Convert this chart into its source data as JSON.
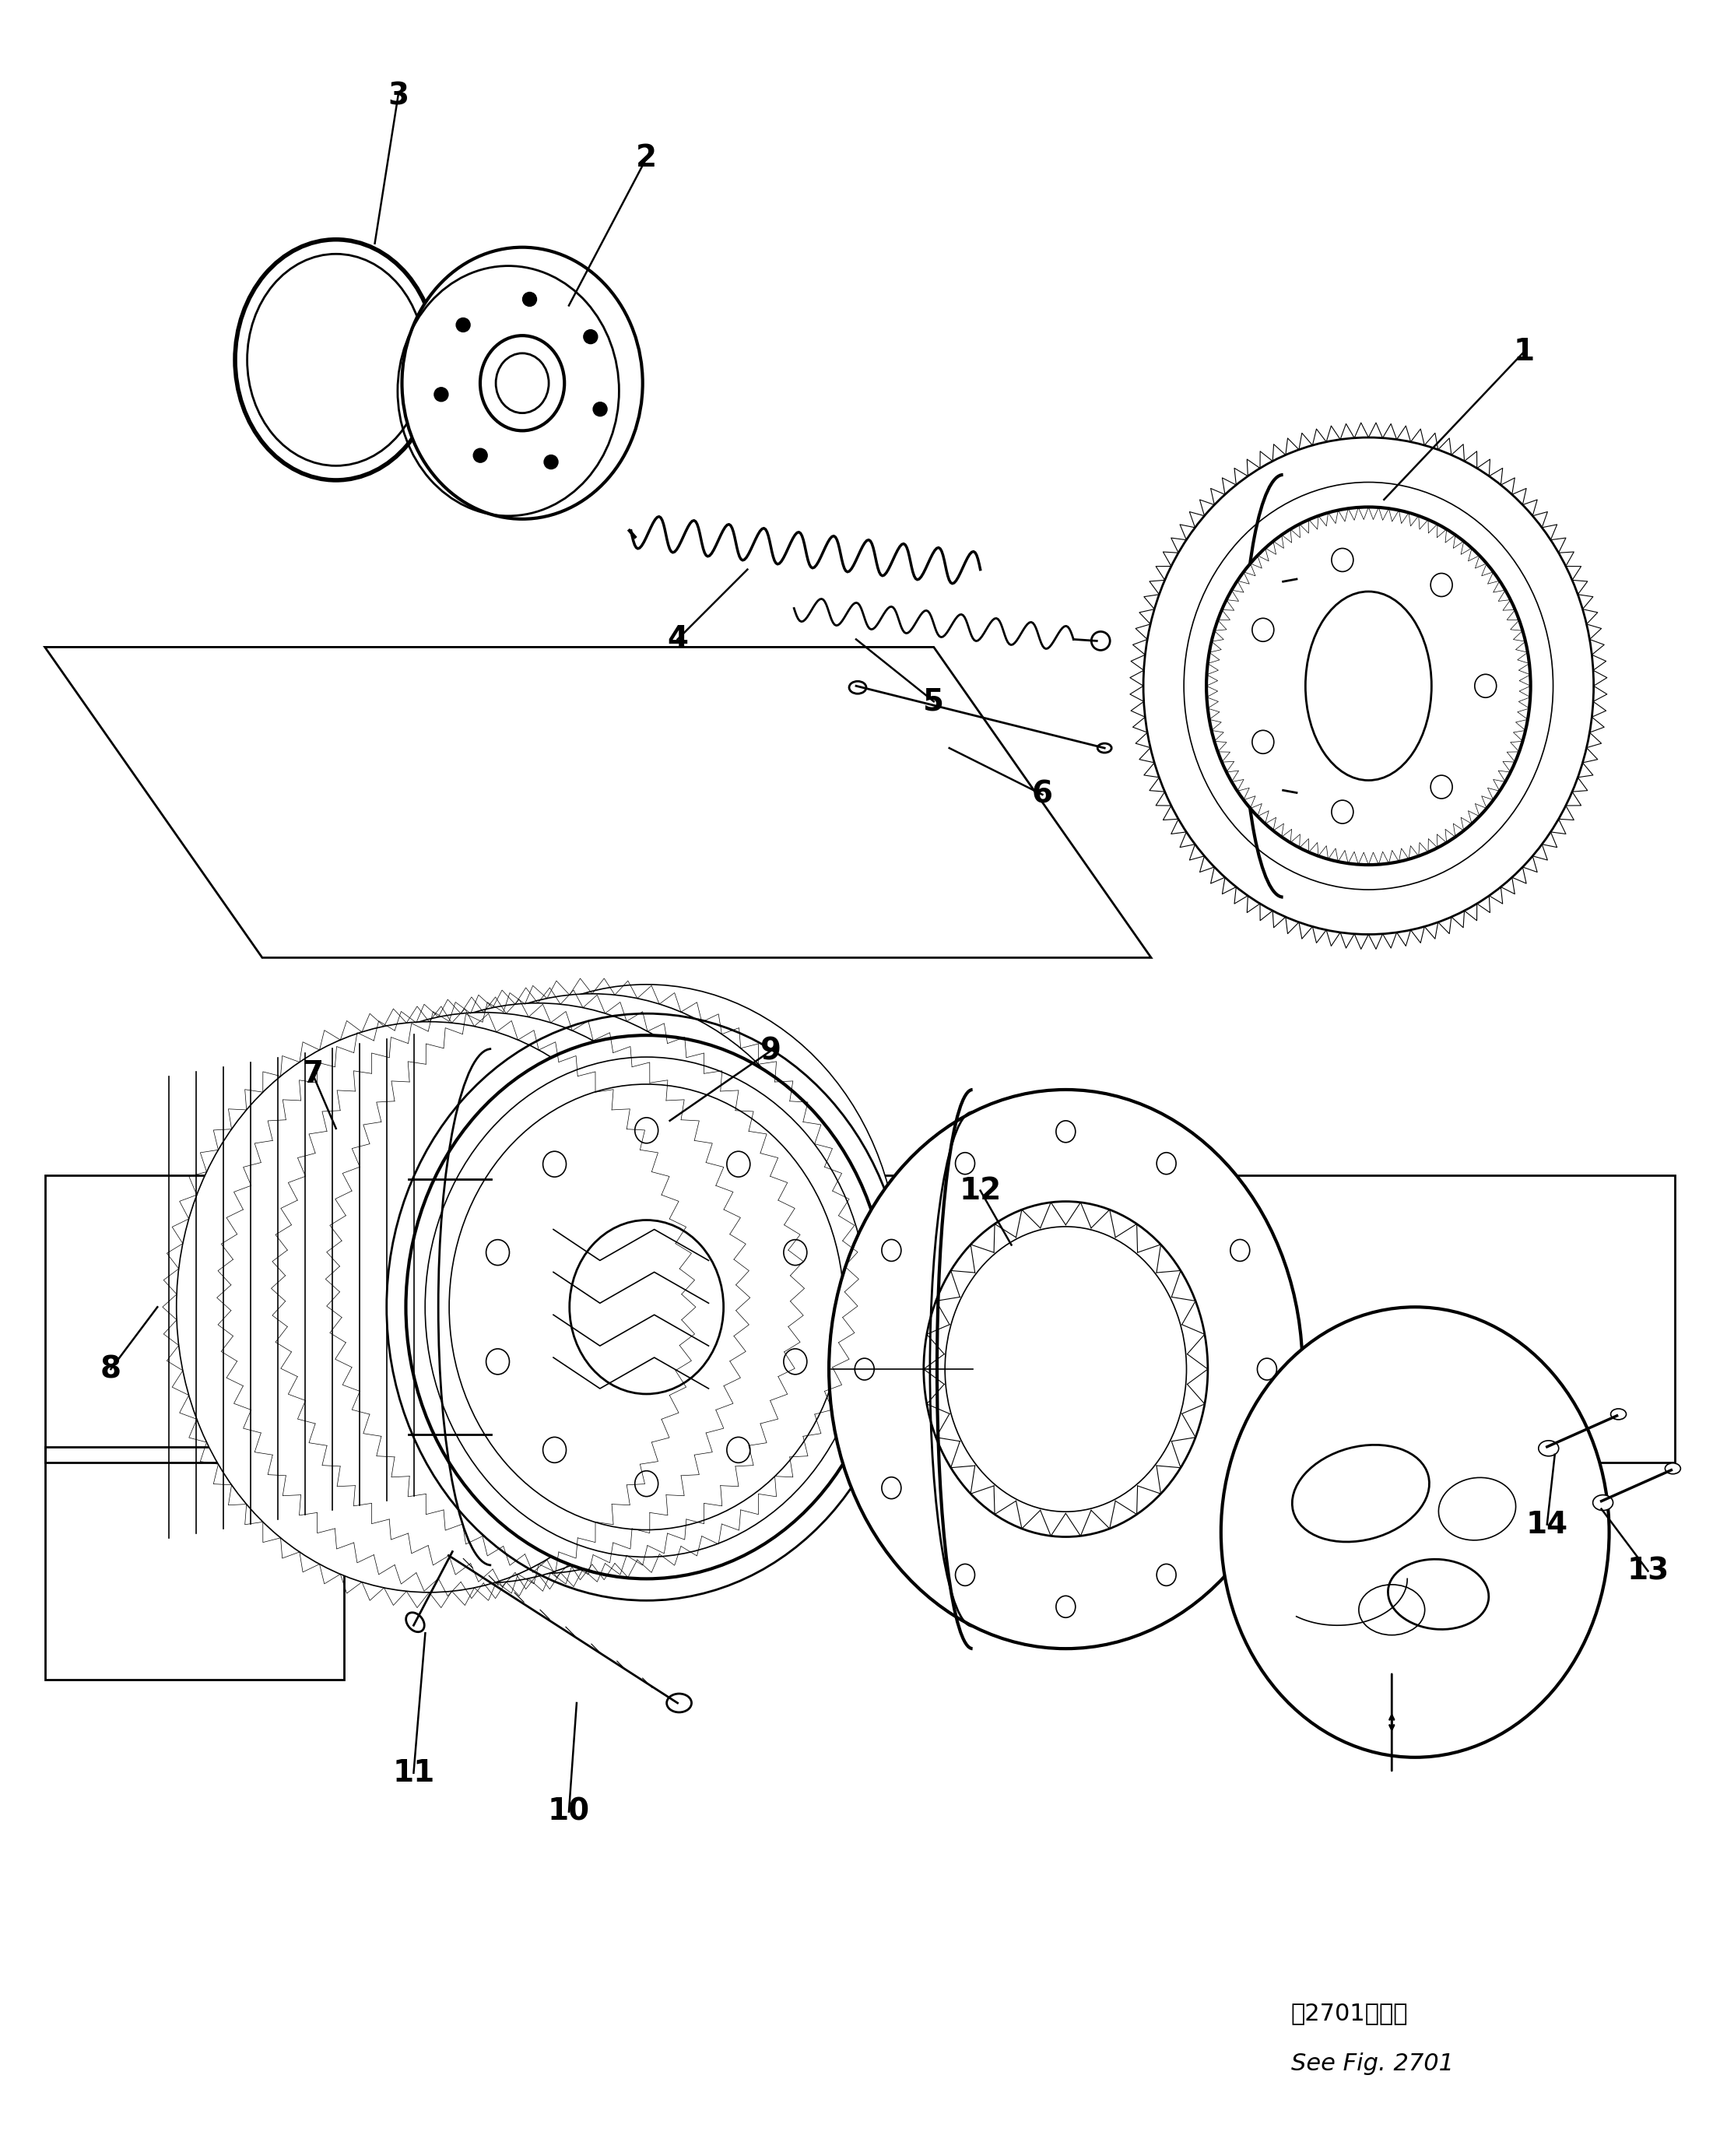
{
  "bg_color": "#ffffff",
  "line_color": "#000000",
  "fig_width": 22.1,
  "fig_height": 27.7,
  "note_line1": "第2701図参照",
  "note_line2": "See Fig. 2701",
  "label_fontsize": 28
}
